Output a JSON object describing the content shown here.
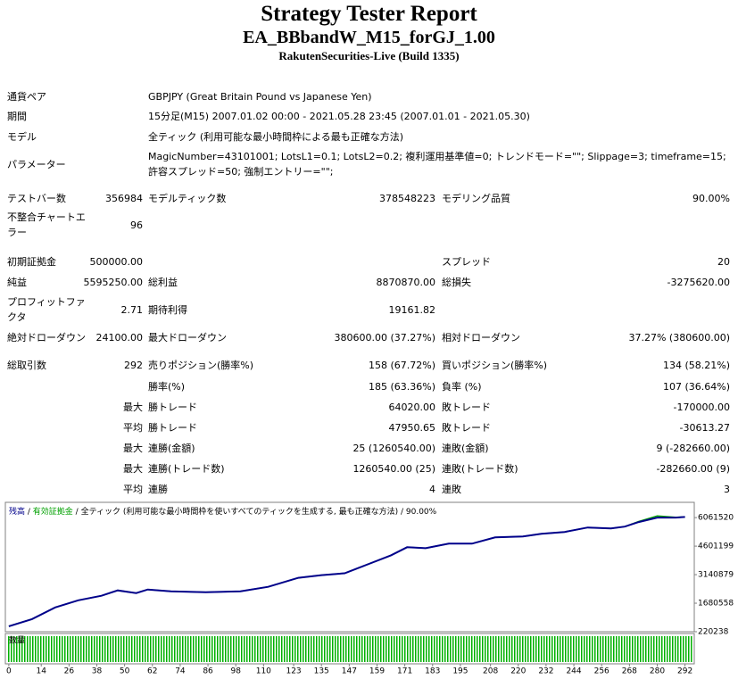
{
  "header": {
    "title": "Strategy Tester Report",
    "subtitle": "EA_BBbandW_M15_forGJ_1.00",
    "server": "RakutenSecurities-Live (Build 1335)"
  },
  "table": {
    "rows": [
      {
        "label": "通貨ペア",
        "text": "GBPJPY (Great Britain Pound vs Japanese Yen)"
      },
      {
        "label": "期間",
        "text": "15分足(M15) 2007.01.02 00:00 - 2021.05.28 23:45 (2007.01.01 - 2021.05.30)"
      },
      {
        "label": "モデル",
        "text": "全ティック (利用可能な最小時間枠による最も正確な方法)"
      },
      {
        "label": "パラメーター",
        "text": "MagicNumber=43101001; LotsL1=0.1; LotsL2=0.2; 複利運用基準値=0; トレンドモード=\"\"; Slippage=3; timeframe=15; 許容スプレッド=50; 強制エントリー=\"\";"
      },
      {
        "label": "テストバー数",
        "value": "356984",
        "label2": "モデルティック数",
        "value2": "378548223",
        "label3": "モデリング品質",
        "value3": "90.00%"
      },
      {
        "label": "不整合チャートエラー",
        "value": "96"
      },
      {
        "label": "初期証拠金",
        "value": "500000.00",
        "label3": "スプレッド",
        "value3": "20"
      },
      {
        "label": "純益",
        "value": "5595250.00",
        "label2": "総利益",
        "value2": "8870870.00",
        "label3": "総損失",
        "value3": "-3275620.00"
      },
      {
        "label": "プロフィットファクタ",
        "value": "2.71",
        "label2": "期待利得",
        "value2": "19161.82"
      },
      {
        "label": "絶対ドローダウン",
        "value": "24100.00",
        "label2": "最大ドローダウン",
        "value2": "380600.00 (37.27%)",
        "label3": "相対ドローダウン",
        "value3": "37.27% (380600.00)"
      },
      {
        "label": "総取引数",
        "value": "292",
        "label2": "売りポジション(勝率%)",
        "value2": "158 (67.72%)",
        "label3": "買いポジション(勝率%)",
        "value3": "134 (58.21%)"
      },
      {
        "label2": "勝率(%)",
        "value2": "185 (63.36%)",
        "label3": "負率 (%)",
        "value3": "107 (36.64%)"
      },
      {
        "value": "最大",
        "label2": "勝トレード",
        "value2": "64020.00",
        "label3": "敗トレード",
        "value3": "-170000.00"
      },
      {
        "value": "平均",
        "label2": "勝トレード",
        "value2": "47950.65",
        "label3": "敗トレード",
        "value3": "-30613.27"
      },
      {
        "value": "最大",
        "label2": "連勝(金額)",
        "value2": "25 (1260540.00)",
        "label3": "連敗(金額)",
        "value3": "9 (-282660.00)"
      },
      {
        "value": "最大",
        "label2": "連勝(トレード数)",
        "value2": "1260540.00 (25)",
        "label3": "連敗(トレード数)",
        "value3": "-282660.00 (9)"
      },
      {
        "value": "平均",
        "label2": "連勝",
        "value2": "4",
        "label3": "連敗",
        "value3": "3"
      }
    ]
  },
  "chart_data": {
    "type": "line",
    "separator": " / ",
    "model_note": "全ティック (利用可能な最小時間枠を使いすべてのティックを生成する, 最も正確な方法)",
    "quality": "90.00%",
    "volume_label": "数量",
    "x": [
      0,
      10,
      20,
      30,
      40,
      47,
      55,
      60,
      70,
      85,
      100,
      112,
      125,
      135,
      145,
      155,
      165,
      172,
      180,
      190,
      200,
      210,
      222,
      230,
      240,
      250,
      260,
      266,
      272,
      280,
      288,
      292
    ],
    "series": [
      {
        "name": "残高",
        "color": "#00008b",
        "values": [
          500000,
          864000,
          1462000,
          1830000,
          2060000,
          2336000,
          2198000,
          2382000,
          2290000,
          2244000,
          2290000,
          2520000,
          2980000,
          3118000,
          3210000,
          3670000,
          4130000,
          4544000,
          4498000,
          4728000,
          4728000,
          5050000,
          5096000,
          5234000,
          5326000,
          5556000,
          5510000,
          5602000,
          5832000,
          6061000,
          6061000,
          6095250
        ]
      },
      {
        "name": "有効証拠金",
        "color": "#00a000",
        "values": [
          500000,
          864000,
          1462000,
          1830000,
          2060000,
          2336000,
          2198000,
          2382000,
          2290000,
          2244000,
          2290000,
          2520000,
          2980000,
          3118000,
          3210000,
          3670000,
          4130000,
          4544000,
          4498000,
          4728000,
          4728000,
          5050000,
          5096000,
          5234000,
          5326000,
          5556000,
          5510000,
          5602000,
          5860000,
          6150000,
          6080000,
          6095250
        ]
      }
    ],
    "xlim": [
      -1.5,
      296
    ],
    "xticks": [
      0,
      14,
      26,
      38,
      50,
      62,
      74,
      86,
      98,
      110,
      123,
      135,
      147,
      159,
      171,
      183,
      195,
      208,
      220,
      232,
      244,
      256,
      268,
      280,
      292
    ],
    "ylim": [
      220238,
      6843600
    ],
    "yticks": [
      220238,
      1680558,
      3140879,
      4601199,
      6061520
    ]
  }
}
